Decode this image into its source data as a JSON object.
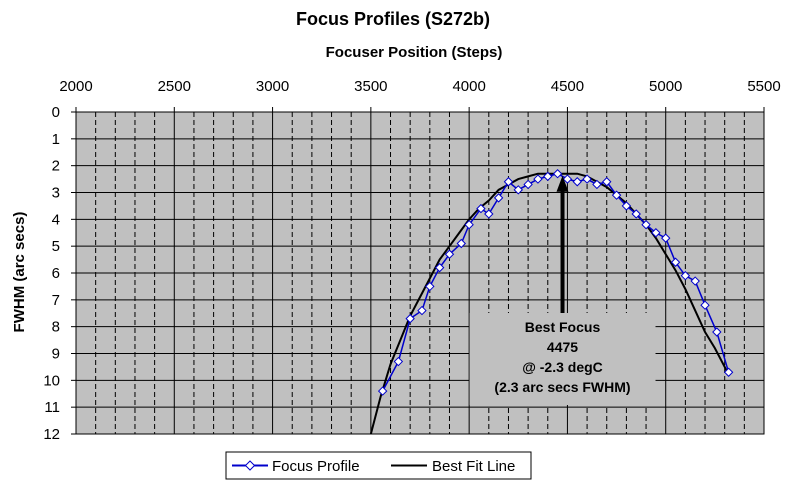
{
  "chart_data": {
    "type": "scatter",
    "title": "Focus Profiles (S272b)",
    "xlabel": "Focuser Position (Steps)",
    "ylabel": "FWHM (arc secs)",
    "xlim": [
      2000,
      5500
    ],
    "ylim": [
      0,
      12
    ],
    "y_axis_inverted": true,
    "x_axis_position": "top",
    "x_ticks": [
      2000,
      2500,
      3000,
      3500,
      4000,
      4500,
      5000,
      5500
    ],
    "x_tick_labels": [
      "2000",
      "2500",
      "3000",
      "3500",
      "4000",
      "4500",
      "5000",
      "5500"
    ],
    "y_ticks": [
      0,
      1,
      2,
      3,
      4,
      5,
      6,
      7,
      8,
      9,
      10,
      11,
      12
    ],
    "y_tick_labels": [
      "0",
      "1",
      "2",
      "3",
      "4",
      "5",
      "6",
      "7",
      "8",
      "9",
      "10",
      "11",
      "12"
    ],
    "grid": true,
    "plot_background": "#c0c0c0",
    "legend_position": "bottom",
    "series": [
      {
        "name": "Focus Profile",
        "color": "#0000cc",
        "marker": "diamond",
        "x": [
          3560,
          3640,
          3700,
          3760,
          3800,
          3850,
          3900,
          3960,
          4000,
          4060,
          4100,
          4150,
          4200,
          4250,
          4300,
          4350,
          4400,
          4450,
          4500,
          4550,
          4600,
          4650,
          4700,
          4750,
          4800,
          4850,
          4900,
          4950,
          5000,
          5050,
          5100,
          5150,
          5200,
          5260,
          5320
        ],
        "y": [
          10.4,
          9.3,
          7.7,
          7.4,
          6.5,
          5.8,
          5.3,
          4.9,
          4.2,
          3.6,
          3.8,
          3.2,
          2.6,
          2.9,
          2.7,
          2.5,
          2.4,
          2.3,
          2.5,
          2.6,
          2.5,
          2.7,
          2.6,
          3.1,
          3.5,
          3.8,
          4.2,
          4.5,
          4.7,
          5.6,
          6.1,
          6.3,
          7.2,
          8.2,
          9.7
        ]
      },
      {
        "name": "Best Fit Line",
        "color": "#000000",
        "marker": "none",
        "x": [
          3500,
          3550,
          3600,
          3650,
          3700,
          3750,
          3800,
          3850,
          3900,
          3950,
          4000,
          4050,
          4100,
          4150,
          4200,
          4250,
          4300,
          4350,
          4400,
          4450,
          4475,
          4500,
          4550,
          4600,
          4650,
          4700,
          4750,
          4800,
          4850,
          4900,
          4950,
          5000,
          5050,
          5100,
          5150,
          5200,
          5250,
          5300,
          5320
        ],
        "y": [
          12.0,
          10.6,
          9.4,
          8.5,
          7.6,
          6.9,
          6.2,
          5.5,
          5.0,
          4.5,
          4.0,
          3.6,
          3.3,
          2.9,
          2.7,
          2.5,
          2.4,
          2.3,
          2.3,
          2.3,
          2.3,
          2.3,
          2.3,
          2.4,
          2.6,
          2.8,
          3.1,
          3.4,
          3.8,
          4.2,
          4.7,
          5.3,
          5.9,
          6.6,
          7.4,
          8.2,
          8.8,
          9.5,
          9.8
        ]
      }
    ],
    "annotation": {
      "lines": [
        "Best Focus",
        "4475",
        "@ -2.3 degC",
        "(2.3 arc secs FWHM)"
      ],
      "arrow_x": 4475,
      "arrow_y": 2.3
    }
  }
}
